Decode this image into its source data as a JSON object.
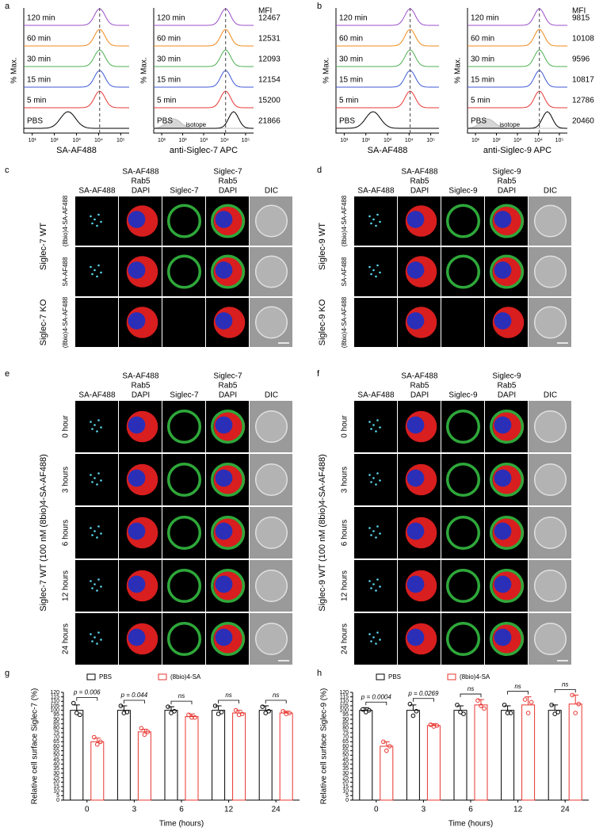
{
  "panel_labels": [
    "a",
    "b",
    "c",
    "d",
    "e",
    "f",
    "g",
    "h"
  ],
  "flow": [
    {
      "ylabel": "% Max.",
      "xlabel": "SA-AF488",
      "samples": [
        "120 min",
        "60 min",
        "30 min",
        "15 min",
        "5 min",
        "PBS"
      ],
      "xticks": [
        "10¹",
        "10²",
        "10³",
        "10⁴",
        "10⁵"
      ]
    },
    {
      "ylabel": "% Max.",
      "xlabel": "anti-Siglec-7 APC",
      "samples": [
        "120 min",
        "60 min",
        "30 min",
        "15 min",
        "5 min",
        "PBS"
      ],
      "mfi_title": "MFI",
      "mfi": [
        12467,
        12531,
        12093,
        12154,
        15200,
        21866
      ],
      "isotope": "isotope",
      "xticks": [
        "10¹",
        "10²",
        "10³",
        "10⁴",
        "10⁵"
      ]
    },
    {
      "ylabel": "% Max.",
      "xlabel": "SA-AF488",
      "samples": [
        "120 min",
        "60 min",
        "30 min",
        "15 min",
        "5 min",
        "PBS"
      ],
      "xticks": [
        "10¹",
        "10²",
        "10³",
        "10⁴",
        "10⁵"
      ]
    },
    {
      "ylabel": "% Max.",
      "xlabel": "anti-Siglec-9 APC",
      "samples": [
        "120 min",
        "60 min",
        "30 min",
        "15 min",
        "5 min",
        "PBS"
      ],
      "mfi_title": "MFI",
      "mfi": [
        9815,
        10108,
        9596,
        10817,
        12786,
        20460
      ],
      "isotope": "isotope",
      "xticks": [
        "10¹",
        "10²",
        "10³",
        "10⁴",
        "10⁵"
      ]
    }
  ],
  "micro": [
    {
      "columns": [
        [
          "SA-AF488"
        ],
        [
          "SA-AF488",
          "Rab5",
          "DAPI"
        ],
        [
          "Siglec-7"
        ],
        [
          "Siglec-7",
          "Rab5",
          "DAPI"
        ],
        [
          "DIC"
        ]
      ],
      "groups": [
        {
          "label": "Siglec-7 WT",
          "rows": [
            "(8bio)4-SA-AF488",
            "SA-AF488"
          ]
        },
        {
          "label": "Siglec-7 KO",
          "rows": [
            "(8bio)4-SA-AF488"
          ]
        }
      ]
    },
    {
      "columns": [
        [
          "SA-AF488"
        ],
        [
          "SA-AF488",
          "Rab5",
          "DAPI"
        ],
        [
          "Siglec-9"
        ],
        [
          "Siglec-9",
          "Rab5",
          "DAPI"
        ],
        [
          "DIC"
        ]
      ],
      "groups": [
        {
          "label": "Siglec-9 WT",
          "rows": [
            "(8bio)4-SA-AF488",
            "SA-AF488"
          ]
        },
        {
          "label": "Siglec-9 KO",
          "rows": [
            "(8bio)4-SA-AF488"
          ]
        }
      ]
    },
    {
      "columns": [
        [
          "SA-AF488"
        ],
        [
          "SA-AF488",
          "Rab5",
          "DAPI"
        ],
        [
          "Siglec-7"
        ],
        [
          "Siglec-7",
          "Rab5",
          "DAPI"
        ],
        [
          "DIC"
        ]
      ],
      "groups": [
        {
          "label": "Siglec-7 WT (100 nM (8bio)4-SA-AF488)",
          "rows": [
            "0 hour",
            "3 hours",
            "6 hours",
            "12 hours",
            "24 hours"
          ]
        }
      ]
    },
    {
      "columns": [
        [
          "SA-AF488"
        ],
        [
          "SA-AF488",
          "Rab5",
          "DAPI"
        ],
        [
          "Siglec-9"
        ],
        [
          "Siglec-9",
          "Rab5",
          "DAPI"
        ],
        [
          "DIC"
        ]
      ],
      "groups": [
        {
          "label": "Siglec-9 WT (100 nM (8bio)4-SA-AF488)",
          "rows": [
            "0 hour",
            "3 hours",
            "6 hours",
            "12 hours",
            "24 hours"
          ]
        }
      ]
    }
  ],
  "chart_data": [
    {
      "type": "bar",
      "xlabel": "Time (hours)",
      "ylabel": "Relative cell surface Siglec-7 (%)",
      "categories": [
        "0",
        "3",
        "6",
        "12",
        "24"
      ],
      "series": [
        {
          "name": "PBS",
          "color": "#000000",
          "values": [
            100,
            100,
            100,
            100,
            100
          ],
          "errors": [
            6,
            5,
            4,
            5,
            5
          ],
          "points": [
            [
              108,
              97,
              95
            ],
            [
              105,
              97,
              98
            ],
            [
              104,
              97,
              99
            ],
            [
              105,
              96,
              98
            ],
            [
              104,
              97,
              99
            ]
          ]
        },
        {
          "name": "(8bio)4-SA",
          "color": "#e8342f",
          "values": [
            65,
            76,
            93,
            97,
            97
          ],
          "errors": [
            4,
            3,
            3,
            3,
            2
          ],
          "points": [
            [
              70,
              62,
              65
            ],
            [
              80,
              73,
              76
            ],
            [
              95,
              92,
              92
            ],
            [
              100,
              95,
              96
            ],
            [
              99,
              96,
              97
            ]
          ]
        }
      ],
      "annotations": [
        "p = 0.006",
        "p = 0.044",
        "ns",
        "ns",
        "ns"
      ],
      "ylim": [
        0,
        120
      ],
      "yticks": [
        0,
        5,
        10,
        15,
        20,
        25,
        30,
        35,
        40,
        45,
        50,
        55,
        60,
        65,
        70,
        75,
        80,
        85,
        90,
        95,
        100,
        105,
        110,
        115,
        120
      ]
    },
    {
      "type": "bar",
      "xlabel": "Time (hours)",
      "ylabel": "Relative cell surface Siglec-9 (%)",
      "categories": [
        "0",
        "3",
        "6",
        "12",
        "24"
      ],
      "series": [
        {
          "name": "PBS",
          "color": "#000000",
          "values": [
            100,
            100,
            100,
            100,
            100
          ],
          "errors": [
            3,
            6,
            5,
            5,
            6
          ],
          "points": [
            [
              101,
              98,
              100
            ],
            [
              107,
              94,
              99
            ],
            [
              106,
              98,
              96
            ],
            [
              106,
              97,
              97
            ],
            [
              106,
              96,
              98
            ]
          ]
        },
        {
          "name": "(8bio)4-SA",
          "color": "#e8342f",
          "values": [
            60,
            83,
            106,
            106,
            107
          ],
          "errors": [
            5,
            2,
            6,
            9,
            10
          ],
          "points": [
            [
              65,
              55,
              60
            ],
            [
              84,
              82,
              83
            ],
            [
              111,
              105,
              102
            ],
            [
              112,
              97,
              109
            ],
            [
              117,
              97,
              107
            ]
          ]
        }
      ],
      "annotations": [
        "p = 0.0004",
        "p = 0.0269",
        "ns",
        "ns",
        "ns"
      ],
      "ylim": [
        0,
        120
      ],
      "yticks": [
        0,
        5,
        10,
        15,
        20,
        25,
        30,
        35,
        40,
        45,
        50,
        55,
        60,
        65,
        70,
        75,
        80,
        85,
        90,
        95,
        100,
        105,
        110,
        115,
        120
      ]
    }
  ]
}
